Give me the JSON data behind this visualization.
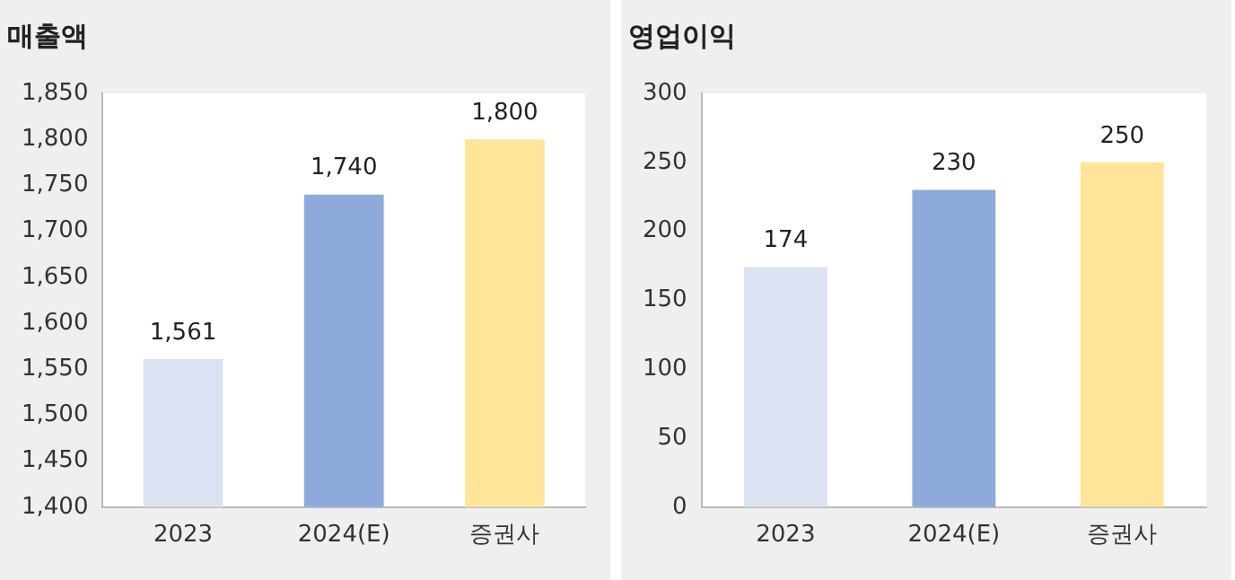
{
  "chart_data": [
    {
      "type": "bar",
      "title": "매출액",
      "categories": [
        "2023",
        "2024(E)",
        "증권사"
      ],
      "values": [
        1561,
        1740,
        1800
      ],
      "colors": [
        "#dbe3f3",
        "#8eaadb",
        "#fee599"
      ],
      "value_labels": [
        "1,561",
        "1,740",
        "1,800"
      ],
      "ylim": [
        1400,
        1850
      ],
      "yticks": [
        {
          "value": 1400,
          "label": "1,400"
        },
        {
          "value": 1450,
          "label": "1,450"
        },
        {
          "value": 1500,
          "label": "1,500"
        },
        {
          "value": 1550,
          "label": "1,550"
        },
        {
          "value": 1600,
          "label": "1,600"
        },
        {
          "value": 1650,
          "label": "1,650"
        },
        {
          "value": 1700,
          "label": "1,700"
        },
        {
          "value": 1750,
          "label": "1,750"
        },
        {
          "value": 1800,
          "label": "1,800"
        },
        {
          "value": 1850,
          "label": "1,850"
        }
      ],
      "grid": false,
      "legend": false
    },
    {
      "type": "bar",
      "title": "영업이익",
      "categories": [
        "2023",
        "2024(E)",
        "증권사"
      ],
      "values": [
        174,
        230,
        250
      ],
      "colors": [
        "#dbe3f3",
        "#8eaadb",
        "#fee599"
      ],
      "data_labels": true,
      "ylim": [
        0,
        300
      ],
      "yticks": [
        0,
        50,
        100,
        150,
        200,
        250,
        300
      ],
      "grid": false,
      "legend": false
    }
  ]
}
